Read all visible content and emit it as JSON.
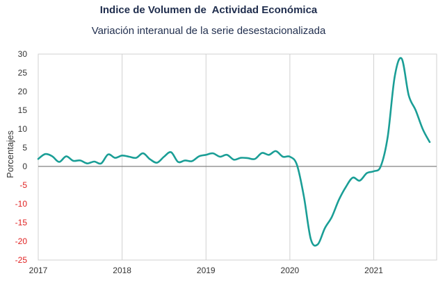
{
  "title": "Indice de Volumen de  Actividad Económica",
  "subtitle": "Variación interanual de la serie desestacionalizada",
  "chart_data": {
    "type": "line",
    "ylabel": "Porcentajes",
    "xlabel": "",
    "ylim": [
      -25,
      30
    ],
    "y_ticks": [
      30,
      25,
      20,
      15,
      10,
      5,
      0,
      -5,
      -10,
      -15,
      -20,
      -25
    ],
    "x_ticks": [
      "2017",
      "2018",
      "2019",
      "2020",
      "2021"
    ],
    "xlim": [
      2017.0,
      2021.75
    ],
    "grid": "vertical",
    "colors": {
      "line": "#1a9e96",
      "negative_tick": "#e02020",
      "positive_tick": "#333333",
      "zero_line": "#808080",
      "grid": "#d0d0d0"
    },
    "series": [
      {
        "x": [
          2017.0,
          2017.083,
          2017.167,
          2017.25,
          2017.333,
          2017.417,
          2017.5,
          2017.583,
          2017.667,
          2017.75,
          2017.833,
          2017.917,
          2018.0,
          2018.083,
          2018.167,
          2018.25,
          2018.333,
          2018.417,
          2018.5,
          2018.583,
          2018.667,
          2018.75,
          2018.833,
          2018.917,
          2019.0,
          2019.083,
          2019.167,
          2019.25,
          2019.333,
          2019.417,
          2019.5,
          2019.583,
          2019.667,
          2019.75,
          2019.833,
          2019.917,
          2020.0,
          2020.083,
          2020.167,
          2020.25,
          2020.333,
          2020.417,
          2020.5,
          2020.583,
          2020.667,
          2020.75,
          2020.833,
          2020.917,
          2021.0,
          2021.083,
          2021.167,
          2021.25,
          2021.333,
          2021.417,
          2021.5,
          2021.583,
          2021.667
        ],
        "values": [
          2.0,
          3.3,
          2.7,
          1.2,
          2.7,
          1.5,
          1.6,
          0.8,
          1.3,
          0.8,
          3.2,
          2.3,
          2.9,
          2.6,
          2.3,
          3.5,
          1.9,
          1.0,
          2.6,
          3.8,
          1.2,
          1.6,
          1.4,
          2.7,
          3.1,
          3.5,
          2.6,
          3.1,
          1.8,
          2.3,
          2.2,
          2.0,
          3.6,
          3.1,
          4.1,
          2.6,
          2.6,
          0.5,
          -8.0,
          -19.5,
          -20.8,
          -16.5,
          -13.5,
          -9.0,
          -5.5,
          -3.0,
          -3.8,
          -1.8,
          -1.3,
          0.0,
          8.0,
          24.0,
          28.8,
          19.0,
          15.0,
          10.0,
          6.5
        ]
      }
    ]
  }
}
